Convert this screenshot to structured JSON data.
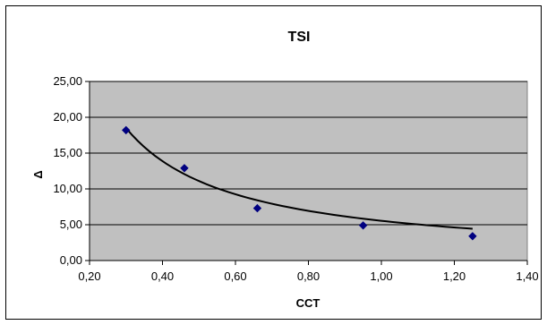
{
  "chart_data": {
    "type": "scatter",
    "title": "TSI",
    "xlabel": "CCT",
    "ylabel": "Δ",
    "xlim": [
      0.2,
      1.4
    ],
    "ylim": [
      0,
      25
    ],
    "x_ticks": [
      "0,20",
      "0,40",
      "0,60",
      "0,80",
      "1,00",
      "1,20",
      "1,40"
    ],
    "y_ticks": [
      "0,00",
      "5,00",
      "10,00",
      "15,00",
      "20,00",
      "25,00"
    ],
    "grid": "horizontal",
    "legend": "none",
    "series": [
      {
        "x": [
          0.3,
          0.46,
          0.66,
          0.95,
          1.25
        ],
        "y": [
          18.2,
          12.9,
          7.3,
          4.9,
          3.4
        ]
      }
    ],
    "trendline": {
      "type": "power",
      "x_range": [
        0.3,
        1.25
      ],
      "coefficient": 5.55,
      "exponent": -1.0
    },
    "colors": {
      "plot_area": "#c0c0c0",
      "marker": "#000080",
      "trendline": "#000000",
      "gridline": "#000000"
    }
  }
}
